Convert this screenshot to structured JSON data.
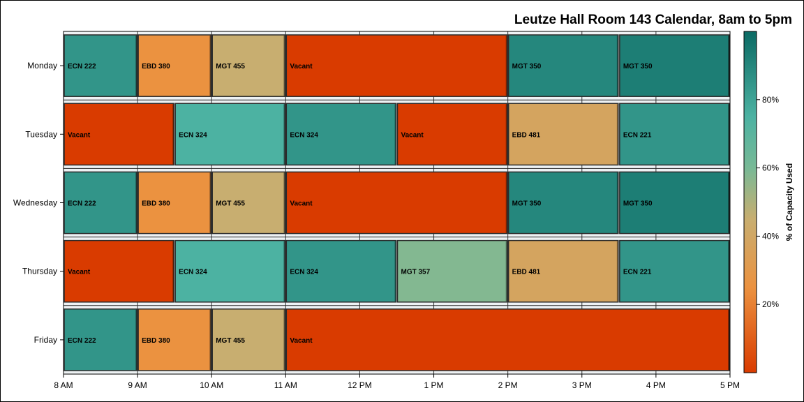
{
  "chart_data": {
    "type": "bar",
    "orientation": "horizontal-timeline",
    "title": "Leutze Hall Room 143 Calendar, 8am to 5pm",
    "categories": [
      "Monday",
      "Tuesday",
      "Wednesday",
      "Thursday",
      "Friday"
    ],
    "x_ticks": [
      {
        "value": 8,
        "label": "8 AM"
      },
      {
        "value": 9,
        "label": "9 AM"
      },
      {
        "value": 10,
        "label": "10 AM"
      },
      {
        "value": 11,
        "label": "11 AM"
      },
      {
        "value": 12,
        "label": "12 PM"
      },
      {
        "value": 13,
        "label": "1 PM"
      },
      {
        "value": 14,
        "label": "2 PM"
      },
      {
        "value": 15,
        "label": "3 PM"
      },
      {
        "value": 16,
        "label": "4 PM"
      },
      {
        "value": 17,
        "label": "5 PM"
      }
    ],
    "xlim": [
      8,
      17
    ],
    "grid": true,
    "schedule": [
      {
        "day": "Monday",
        "events": [
          {
            "label": "ECN 222",
            "start": 8,
            "end": 9,
            "capacity": 85
          },
          {
            "label": "EBD 380",
            "start": 9,
            "end": 10,
            "capacity": 25
          },
          {
            "label": "MGT 455",
            "start": 10,
            "end": 11,
            "capacity": 45
          },
          {
            "label": "Vacant",
            "start": 11,
            "end": 14,
            "capacity": 0
          },
          {
            "label": "MGT 350",
            "start": 14,
            "end": 15.5,
            "capacity": 90
          },
          {
            "label": "MGT 350",
            "start": 15.5,
            "end": 17,
            "capacity": 93
          }
        ]
      },
      {
        "day": "Tuesday",
        "events": [
          {
            "label": "Vacant",
            "start": 8,
            "end": 9.5,
            "capacity": 0
          },
          {
            "label": "ECN 324",
            "start": 9.5,
            "end": 11,
            "capacity": 75
          },
          {
            "label": "ECN 324",
            "start": 11,
            "end": 12.5,
            "capacity": 85
          },
          {
            "label": "Vacant",
            "start": 12.5,
            "end": 14,
            "capacity": 0
          },
          {
            "label": "EBD 481",
            "start": 14,
            "end": 15.5,
            "capacity": 38
          },
          {
            "label": "ECN 221",
            "start": 15.5,
            "end": 17,
            "capacity": 85
          }
        ]
      },
      {
        "day": "Wednesday",
        "events": [
          {
            "label": "ECN 222",
            "start": 8,
            "end": 9,
            "capacity": 85
          },
          {
            "label": "EBD 380",
            "start": 9,
            "end": 10,
            "capacity": 25
          },
          {
            "label": "MGT 455",
            "start": 10,
            "end": 11,
            "capacity": 45
          },
          {
            "label": "Vacant",
            "start": 11,
            "end": 14,
            "capacity": 0
          },
          {
            "label": "MGT 350",
            "start": 14,
            "end": 15.5,
            "capacity": 90
          },
          {
            "label": "MGT 350",
            "start": 15.5,
            "end": 17,
            "capacity": 93
          }
        ]
      },
      {
        "day": "Thursday",
        "events": [
          {
            "label": "Vacant",
            "start": 8,
            "end": 9.5,
            "capacity": 0
          },
          {
            "label": "ECN 324",
            "start": 9.5,
            "end": 11,
            "capacity": 75
          },
          {
            "label": "ECN 324",
            "start": 11,
            "end": 12.5,
            "capacity": 85
          },
          {
            "label": "MGT 357",
            "start": 12.5,
            "end": 14,
            "capacity": 58
          },
          {
            "label": "EBD 481",
            "start": 14,
            "end": 15.5,
            "capacity": 38
          },
          {
            "label": "ECN 221",
            "start": 15.5,
            "end": 17,
            "capacity": 85
          }
        ]
      },
      {
        "day": "Friday",
        "events": [
          {
            "label": "ECN 222",
            "start": 8,
            "end": 9,
            "capacity": 85
          },
          {
            "label": "EBD 380",
            "start": 9,
            "end": 10,
            "capacity": 25
          },
          {
            "label": "MGT 455",
            "start": 10,
            "end": 11,
            "capacity": 45
          },
          {
            "label": "Vacant",
            "start": 11,
            "end": 17,
            "capacity": 0
          }
        ]
      }
    ],
    "colorbar": {
      "title": "% of Capacity Used",
      "range": [
        0,
        100
      ],
      "ticks": [
        {
          "value": 20,
          "label": "20%"
        },
        {
          "value": 40,
          "label": "40%"
        },
        {
          "value": 60,
          "label": "60%"
        },
        {
          "value": 80,
          "label": "80%"
        }
      ],
      "stops": [
        {
          "value": 0,
          "color": "#d93b00"
        },
        {
          "value": 25,
          "color": "#eb9240"
        },
        {
          "value": 45,
          "color": "#c8ae70"
        },
        {
          "value": 60,
          "color": "#78b996"
        },
        {
          "value": 75,
          "color": "#4cb2a2"
        },
        {
          "value": 100,
          "color": "#0b6a64"
        }
      ]
    }
  }
}
